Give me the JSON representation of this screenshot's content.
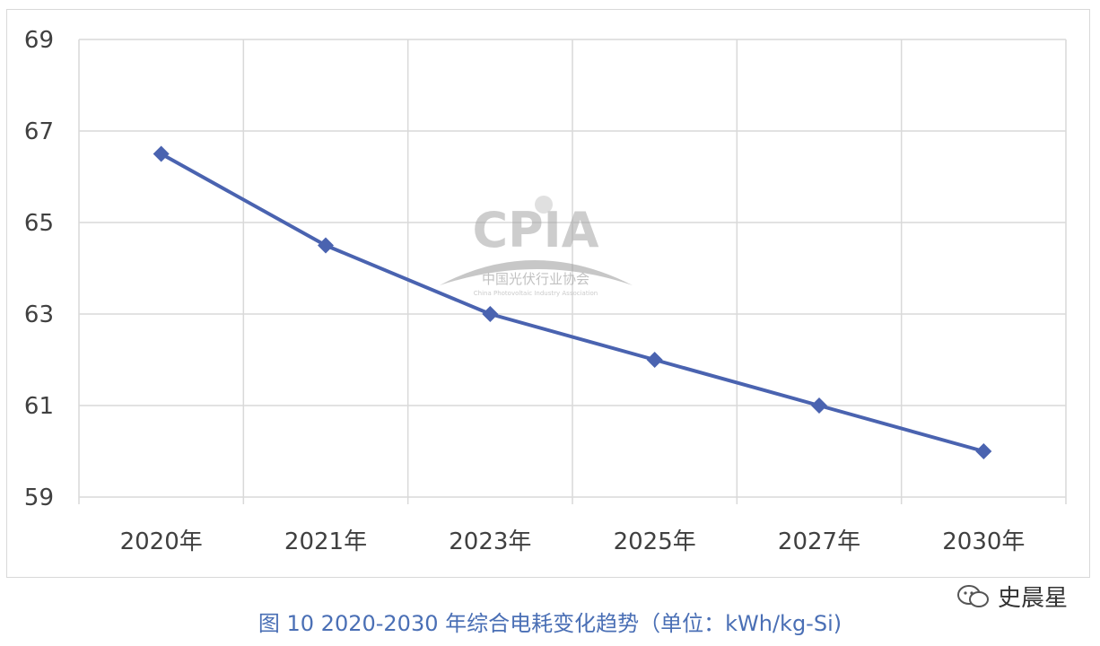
{
  "chart_data": {
    "type": "line",
    "categories": [
      "2020年",
      "2021年",
      "2023年",
      "2025年",
      "2027年",
      "2030年"
    ],
    "series": [
      {
        "values": [
          66.5,
          64.5,
          63.0,
          62.0,
          61.0,
          60.0
        ]
      }
    ],
    "yticks": [
      "59",
      "61",
      "63",
      "65",
      "67",
      "69"
    ],
    "ylim": [
      59,
      69
    ],
    "grid": true,
    "line_color": "#4a63b0",
    "marker": "diamond"
  },
  "caption": "图 10   2020-2030 年综合电耗变化趋势（单位：kWh/kg-Si)",
  "watermark": {
    "logo_text": "CPIA",
    "org_cn": "中国光伏行业协会",
    "org_en": "China Photovoltaic Industry Association"
  },
  "brand": {
    "account": "史晨星",
    "icon": "wechat-icon"
  }
}
